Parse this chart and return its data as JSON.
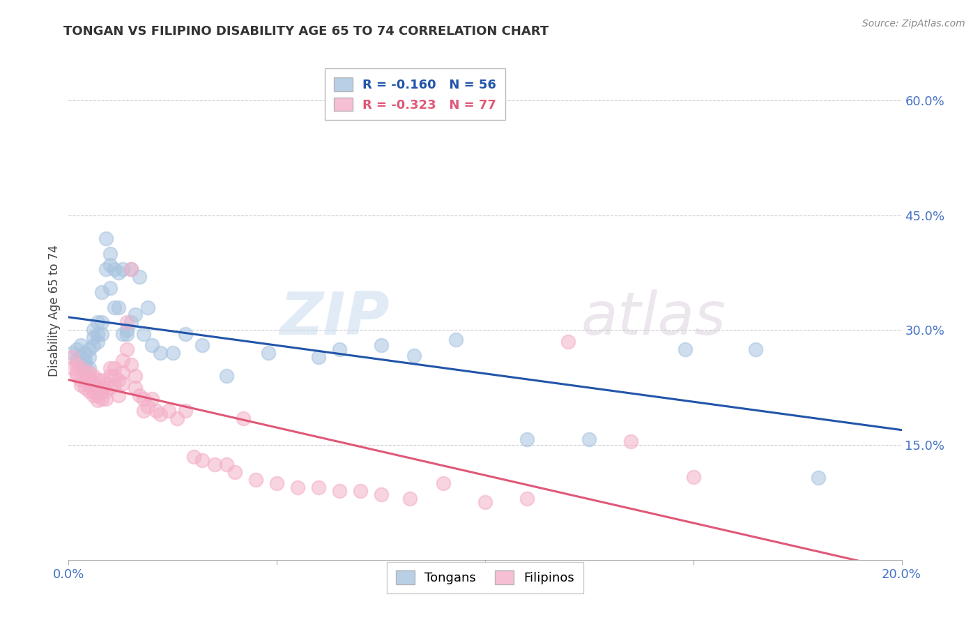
{
  "title": "TONGAN VS FILIPINO DISABILITY AGE 65 TO 74 CORRELATION CHART",
  "source": "Source: ZipAtlas.com",
  "ylabel": "Disability Age 65 to 74",
  "xlim": [
    0.0,
    0.2
  ],
  "ylim": [
    0.0,
    0.65
  ],
  "xticks": [
    0.0,
    0.05,
    0.1,
    0.15,
    0.2
  ],
  "xtick_labels": [
    "0.0%",
    "",
    "",
    "",
    "20.0%"
  ],
  "ytick_labels_right": [
    "60.0%",
    "45.0%",
    "30.0%",
    "15.0%"
  ],
  "ytick_positions_right": [
    0.6,
    0.45,
    0.3,
    0.15
  ],
  "tongan_color": "#a8c4e0",
  "filipino_color": "#f4afc8",
  "tongan_line_color": "#2255aa",
  "filipino_line_color": "#e05878",
  "watermark_zip": "ZIP",
  "watermark_atlas": "atlas",
  "background_color": "#ffffff",
  "grid_color": "#cccccc",
  "title_color": "#333333",
  "axis_label_color": "#444444",
  "right_tick_color": "#4472c4",
  "legend_text_tongan": "R = -0.160   N = 56",
  "legend_text_filipino": "R = -0.323   N = 77",
  "legend_label_tongan": "Tongans",
  "legend_label_filipino": "Filipinos",
  "tongan_x": [
    0.001,
    0.002,
    0.002,
    0.003,
    0.003,
    0.004,
    0.004,
    0.004,
    0.005,
    0.005,
    0.005,
    0.006,
    0.006,
    0.006,
    0.007,
    0.007,
    0.007,
    0.008,
    0.008,
    0.008,
    0.009,
    0.009,
    0.01,
    0.01,
    0.01,
    0.011,
    0.011,
    0.012,
    0.012,
    0.013,
    0.013,
    0.014,
    0.014,
    0.015,
    0.015,
    0.016,
    0.017,
    0.018,
    0.019,
    0.02,
    0.022,
    0.025,
    0.028,
    0.032,
    0.038,
    0.048,
    0.06,
    0.065,
    0.075,
    0.083,
    0.093,
    0.11,
    0.125,
    0.148,
    0.165,
    0.18
  ],
  "tongan_y": [
    0.27,
    0.275,
    0.26,
    0.265,
    0.28,
    0.255,
    0.26,
    0.27,
    0.25,
    0.265,
    0.275,
    0.28,
    0.29,
    0.3,
    0.285,
    0.295,
    0.31,
    0.295,
    0.31,
    0.35,
    0.38,
    0.42,
    0.385,
    0.355,
    0.4,
    0.33,
    0.38,
    0.33,
    0.375,
    0.295,
    0.38,
    0.3,
    0.295,
    0.31,
    0.38,
    0.32,
    0.37,
    0.295,
    0.33,
    0.28,
    0.27,
    0.27,
    0.295,
    0.28,
    0.24,
    0.27,
    0.265,
    0.275,
    0.28,
    0.267,
    0.288,
    0.157,
    0.157,
    0.275,
    0.275,
    0.107
  ],
  "filipino_x": [
    0.001,
    0.001,
    0.002,
    0.002,
    0.002,
    0.003,
    0.003,
    0.003,
    0.004,
    0.004,
    0.004,
    0.005,
    0.005,
    0.005,
    0.005,
    0.006,
    0.006,
    0.006,
    0.006,
    0.007,
    0.007,
    0.007,
    0.007,
    0.008,
    0.008,
    0.008,
    0.008,
    0.009,
    0.009,
    0.009,
    0.01,
    0.01,
    0.01,
    0.011,
    0.011,
    0.011,
    0.012,
    0.012,
    0.013,
    0.013,
    0.013,
    0.014,
    0.014,
    0.015,
    0.015,
    0.016,
    0.016,
    0.017,
    0.018,
    0.018,
    0.019,
    0.02,
    0.021,
    0.022,
    0.024,
    0.026,
    0.028,
    0.03,
    0.032,
    0.035,
    0.038,
    0.04,
    0.042,
    0.045,
    0.05,
    0.055,
    0.06,
    0.065,
    0.07,
    0.075,
    0.082,
    0.09,
    0.1,
    0.11,
    0.12,
    0.135,
    0.15
  ],
  "filipino_y": [
    0.265,
    0.25,
    0.255,
    0.245,
    0.24,
    0.25,
    0.235,
    0.228,
    0.245,
    0.235,
    0.225,
    0.245,
    0.235,
    0.228,
    0.22,
    0.24,
    0.23,
    0.22,
    0.215,
    0.235,
    0.225,
    0.215,
    0.208,
    0.235,
    0.225,
    0.22,
    0.21,
    0.23,
    0.22,
    0.21,
    0.25,
    0.24,
    0.225,
    0.25,
    0.24,
    0.228,
    0.235,
    0.215,
    0.245,
    0.23,
    0.26,
    0.275,
    0.31,
    0.255,
    0.38,
    0.24,
    0.225,
    0.215,
    0.21,
    0.195,
    0.2,
    0.21,
    0.195,
    0.19,
    0.195,
    0.185,
    0.195,
    0.135,
    0.13,
    0.125,
    0.125,
    0.115,
    0.185,
    0.105,
    0.1,
    0.095,
    0.095,
    0.09,
    0.09,
    0.085,
    0.08,
    0.1,
    0.075,
    0.08,
    0.285,
    0.155,
    0.108
  ]
}
